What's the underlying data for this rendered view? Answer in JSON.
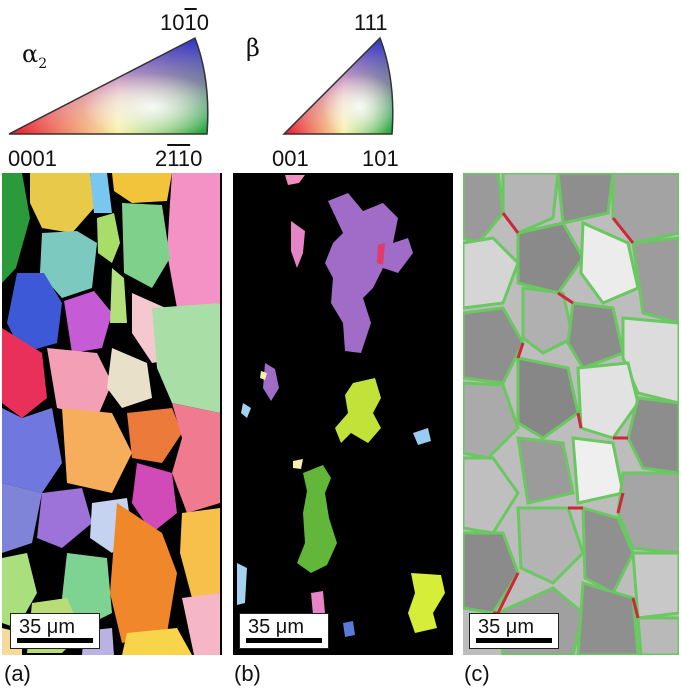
{
  "legend_a": {
    "symbol": "α",
    "subscript": "2",
    "pole_top_prefix": "10",
    "pole_top_bar": "1",
    "pole_top_suffix": "0",
    "pole_left": "0001",
    "pole_right_prefix": "2",
    "pole_right_bar1": "1",
    "pole_right_bar2": "1",
    "pole_right_suffix": "0"
  },
  "legend_b": {
    "symbol": "β",
    "pole_top": "111",
    "pole_left": "001",
    "pole_right": "101"
  },
  "panels": [
    {
      "caption": "(a)",
      "scale_label": "35 μm"
    },
    {
      "caption": "(b)",
      "scale_label": "35 μm"
    },
    {
      "caption": "(c)",
      "scale_label": "35 μm"
    }
  ]
}
